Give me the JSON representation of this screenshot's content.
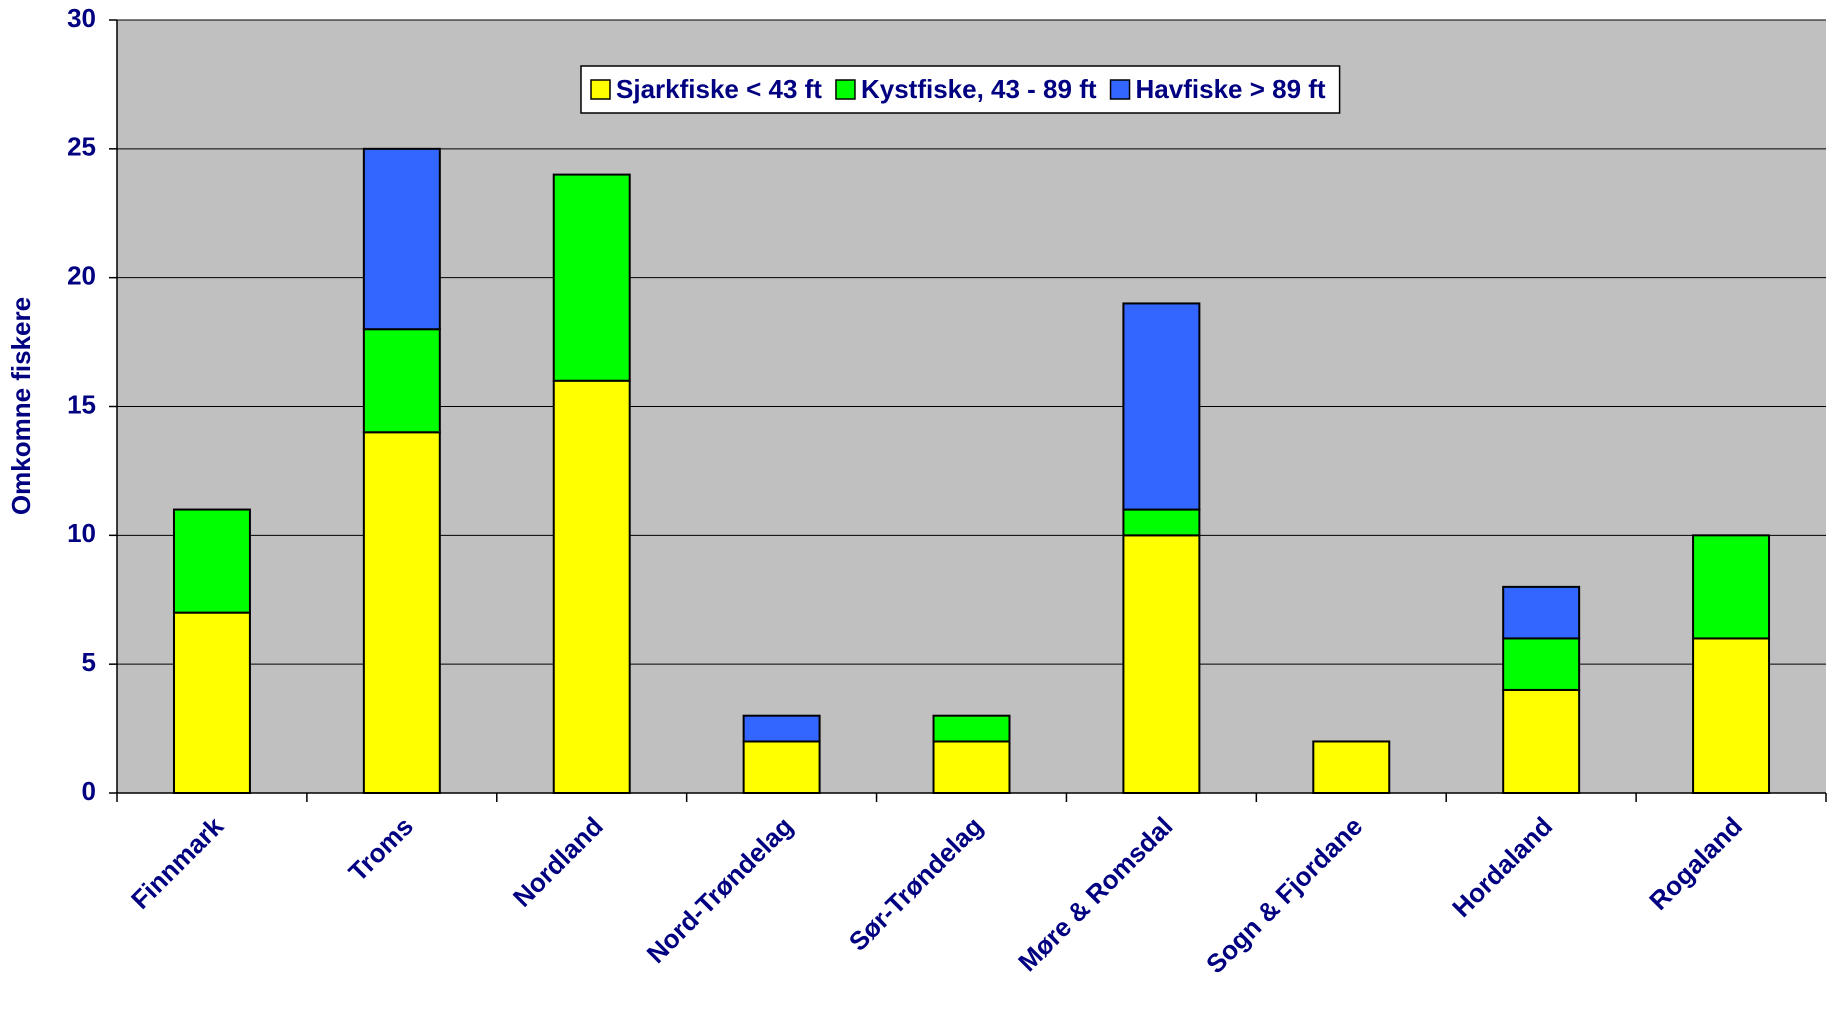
{
  "chart_data": {
    "type": "stacked_bar",
    "ylabel": "Omkomne fiskere",
    "categories": [
      "Finnmark",
      "Troms",
      "Nordland",
      "Nord-Trøndelag",
      "Sør-Trøndelag",
      "Møre & Romsdal",
      "Sogn & Fjordane",
      "Hordaland",
      "Rogaland"
    ],
    "series": [
      {
        "name": "Sjarkfiske < 43 ft",
        "color": "#ffff00",
        "values": [
          7,
          14,
          16,
          2,
          2,
          10,
          2,
          4,
          6
        ]
      },
      {
        "name": "Kystfiske, 43 - 89 ft",
        "color": "#00ff00",
        "values": [
          4,
          4,
          8,
          0,
          1,
          1,
          0,
          2,
          4
        ]
      },
      {
        "name": "Havfiske > 89 ft",
        "color": "#3366ff",
        "values": [
          0,
          7,
          0,
          1,
          0,
          8,
          0,
          2,
          0
        ]
      }
    ],
    "ylim": [
      0,
      30
    ],
    "yticks": [
      0,
      5,
      10,
      15,
      20,
      25,
      30
    ],
    "grid": true,
    "legend": "top"
  }
}
